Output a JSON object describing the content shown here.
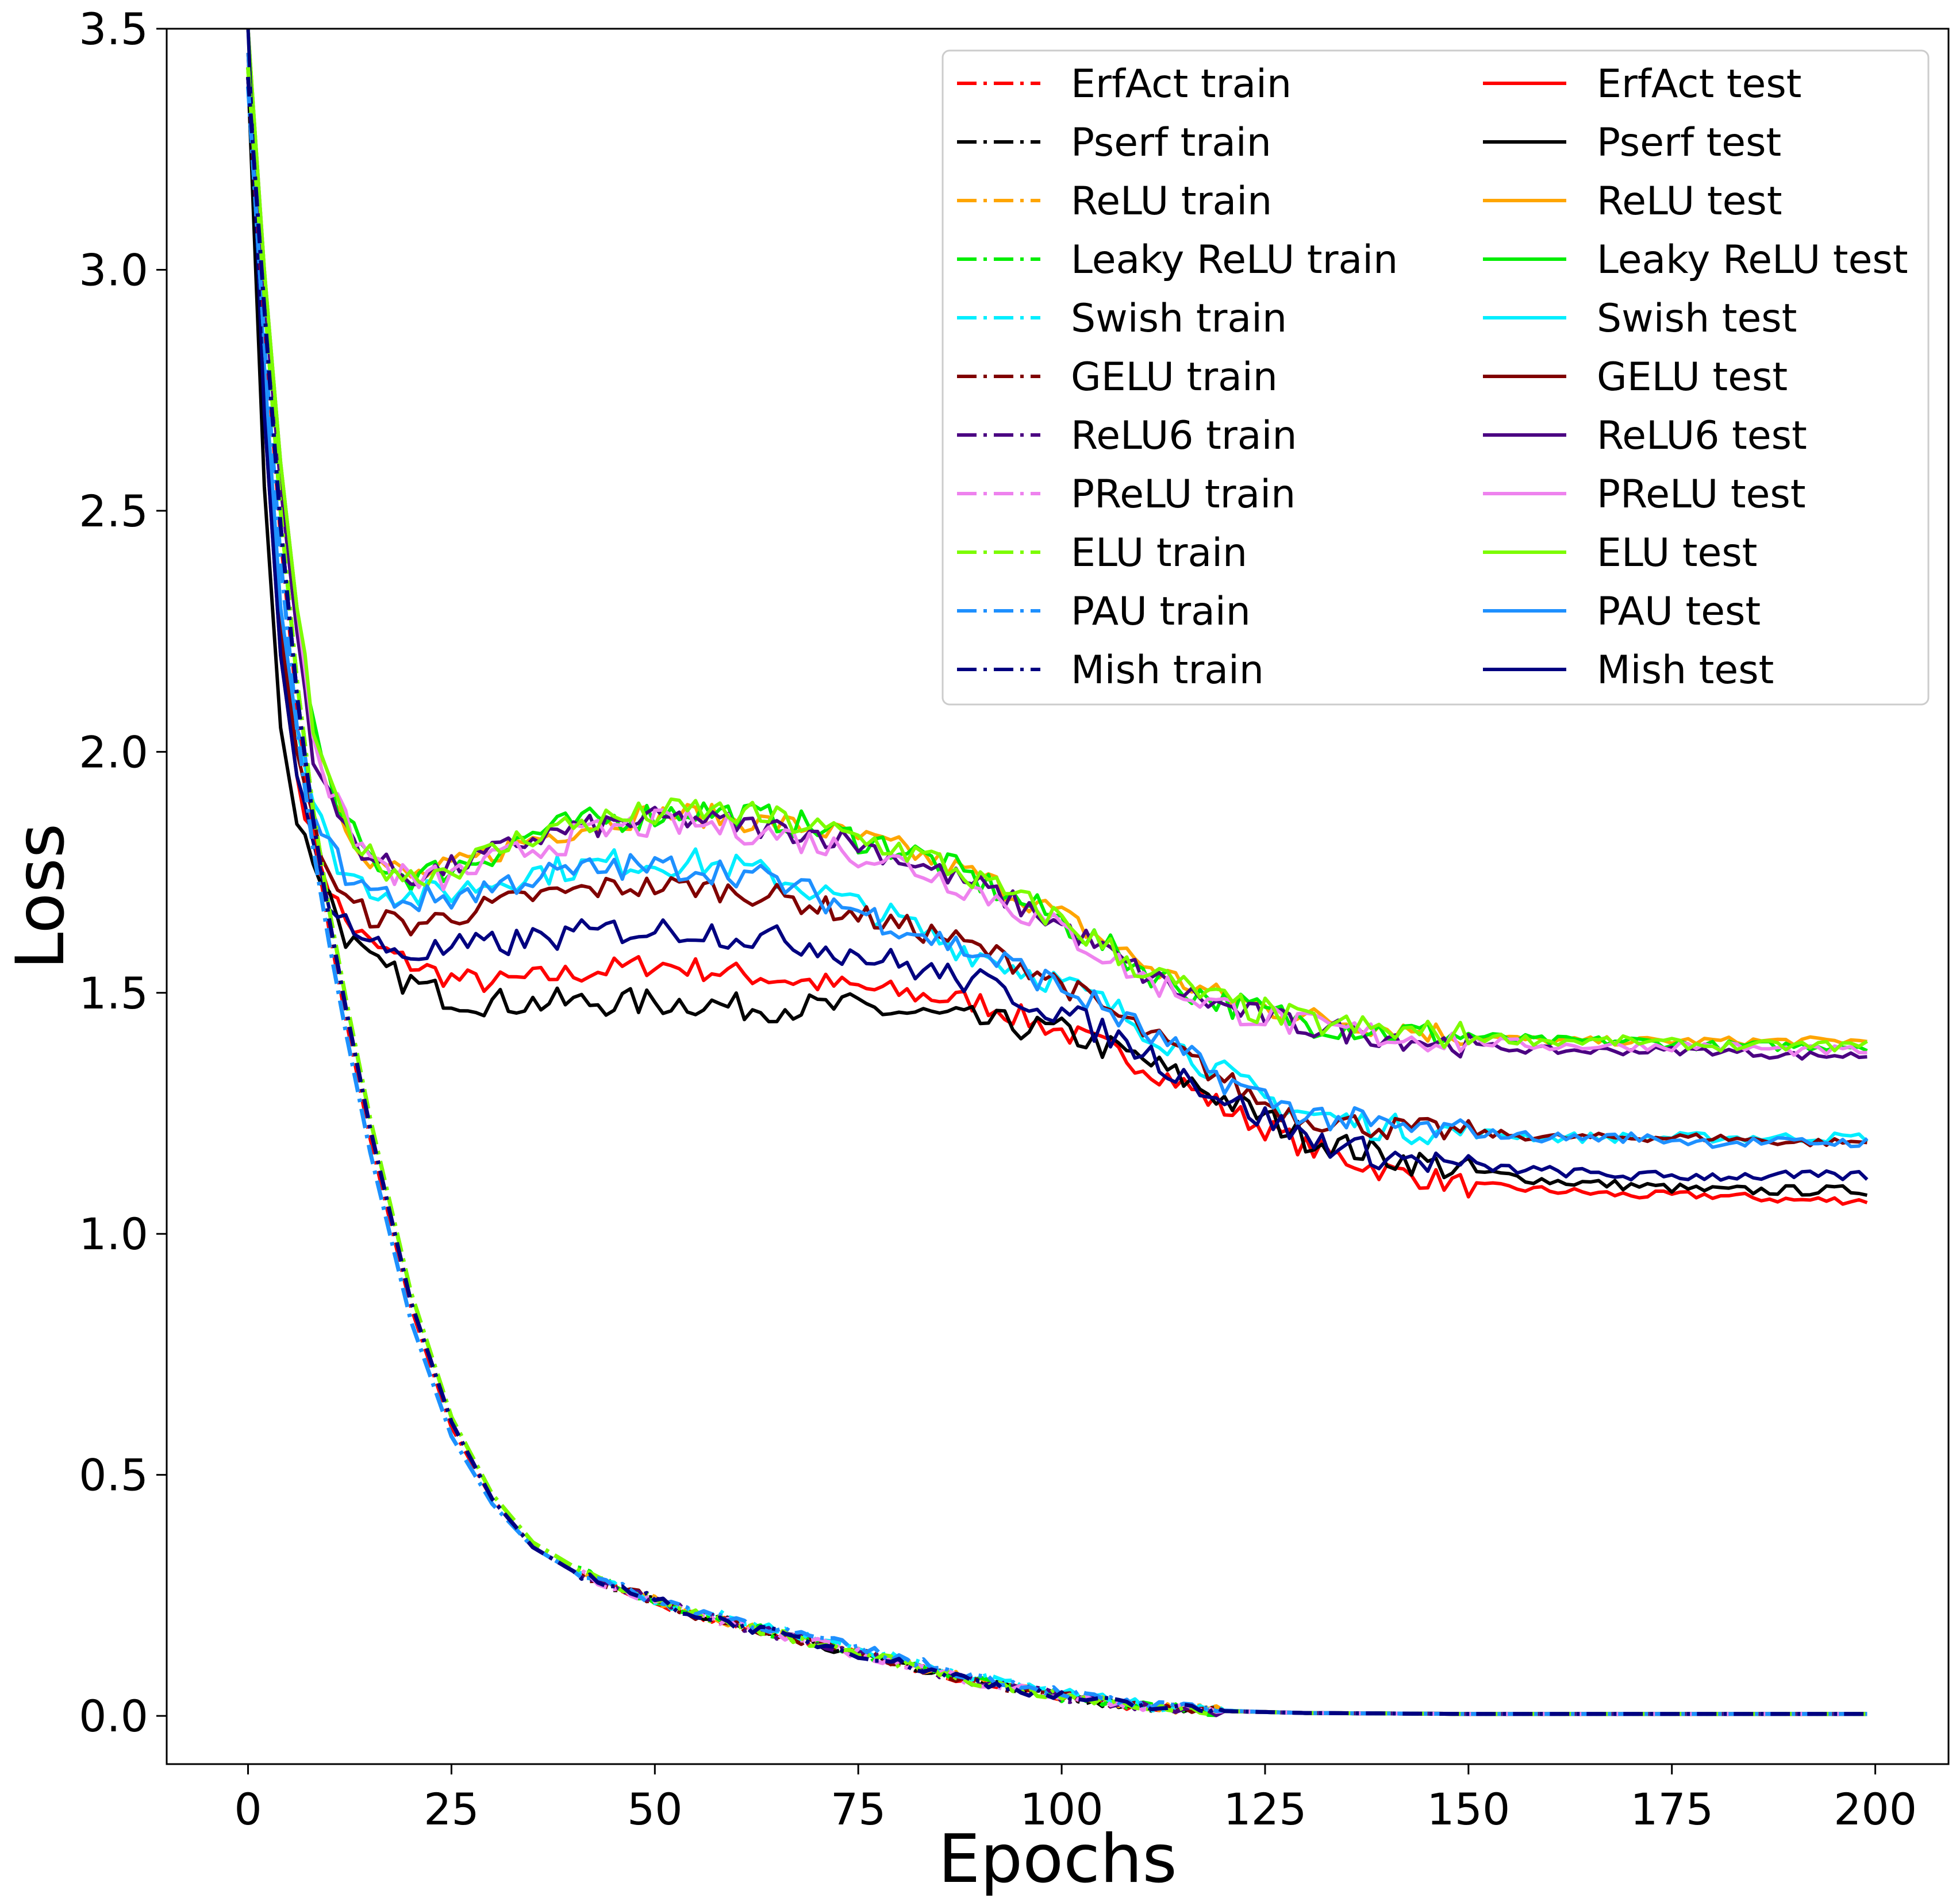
{
  "chart_data": {
    "type": "line",
    "xlabel": "Epochs",
    "ylabel": "Loss",
    "xlim": [
      -10,
      209
    ],
    "ylim": [
      -0.1,
      3.5
    ],
    "xticks": [
      0,
      25,
      50,
      75,
      100,
      125,
      150,
      175,
      200
    ],
    "yticks": [
      0.0,
      0.5,
      1.0,
      1.5,
      2.0,
      2.5,
      3.0,
      3.5
    ],
    "xtick_labels": [
      "0",
      "25",
      "50",
      "75",
      "100",
      "125",
      "150",
      "175",
      "200"
    ],
    "ytick_labels": [
      "0.0",
      "0.5",
      "1.0",
      "1.5",
      "2.0",
      "2.5",
      "3.0",
      "3.5"
    ],
    "grid": false,
    "legend": {
      "position": "top-right",
      "columns": 2
    },
    "series_profiles": {
      "x": [
        0,
        2,
        4,
        6,
        8,
        10,
        12,
        15,
        20,
        25,
        30,
        35,
        40,
        45,
        50,
        55,
        60,
        65,
        70,
        75,
        80,
        85,
        90,
        95,
        100,
        105,
        110,
        115,
        120,
        125,
        130,
        140,
        150,
        160,
        170,
        180,
        190,
        199
      ],
      "train": {
        "epochs_shown": 200,
        "profile": [
          3.4,
          2.9,
          2.45,
          2.1,
          1.84,
          1.63,
          1.45,
          1.2,
          0.85,
          0.6,
          0.45,
          0.35,
          0.3,
          0.27,
          0.24,
          0.21,
          0.19,
          0.17,
          0.15,
          0.13,
          0.11,
          0.09,
          0.07,
          0.055,
          0.04,
          0.03,
          0.02,
          0.015,
          0.01,
          0.008,
          0.006,
          0.005,
          0.004,
          0.004,
          0.004,
          0.004,
          0.004,
          0.004
        ]
      }
    },
    "series": [
      {
        "name": "ErfAct train",
        "color": "#ff0000",
        "dash": "dashdot",
        "group": "train",
        "offset": -0.01,
        "values": [
          3.4,
          2.9,
          2.45,
          2.1,
          1.84,
          1.63,
          1.45,
          1.2,
          0.85,
          0.6,
          0.45,
          0.35,
          0.3,
          0.27,
          0.24,
          0.21,
          0.19,
          0.17,
          0.15,
          0.13,
          0.11,
          0.09,
          0.07,
          0.055,
          0.04,
          0.03,
          0.02,
          0.015,
          0.01,
          0.008,
          0.006,
          0.005,
          0.004,
          0.004,
          0.004,
          0.004,
          0.004,
          0.004
        ]
      },
      {
        "name": "Pserf train",
        "color": "#000000",
        "dash": "dashdot",
        "group": "train",
        "offset": 0.0,
        "values": [
          3.4,
          2.92,
          2.47,
          2.12,
          1.86,
          1.65,
          1.47,
          1.22,
          0.86,
          0.61,
          0.45,
          0.35,
          0.3,
          0.27,
          0.24,
          0.21,
          0.19,
          0.17,
          0.15,
          0.13,
          0.11,
          0.09,
          0.07,
          0.055,
          0.04,
          0.03,
          0.02,
          0.015,
          0.01,
          0.008,
          0.006,
          0.005,
          0.004,
          0.004,
          0.004,
          0.004,
          0.004,
          0.004
        ]
      },
      {
        "name": "ReLU train",
        "color": "#ffa500",
        "dash": "dashdot",
        "group": "train",
        "offset": 0.01,
        "values": [
          3.42,
          2.95,
          2.5,
          2.15,
          1.88,
          1.67,
          1.49,
          1.24,
          0.88,
          0.62,
          0.46,
          0.36,
          0.31,
          0.27,
          0.24,
          0.21,
          0.19,
          0.17,
          0.15,
          0.13,
          0.11,
          0.09,
          0.07,
          0.055,
          0.04,
          0.03,
          0.02,
          0.015,
          0.01,
          0.008,
          0.006,
          0.005,
          0.004,
          0.004,
          0.004,
          0.004,
          0.004,
          0.004
        ]
      },
      {
        "name": "Leaky ReLU train",
        "color": "#00ee00",
        "dash": "dashdot",
        "group": "train",
        "offset": 0.01,
        "values": [
          3.42,
          2.95,
          2.5,
          2.15,
          1.88,
          1.67,
          1.49,
          1.24,
          0.88,
          0.62,
          0.46,
          0.36,
          0.31,
          0.27,
          0.24,
          0.21,
          0.19,
          0.17,
          0.15,
          0.13,
          0.11,
          0.09,
          0.07,
          0.055,
          0.04,
          0.03,
          0.02,
          0.015,
          0.01,
          0.008,
          0.006,
          0.005,
          0.004,
          0.004,
          0.004,
          0.004,
          0.004,
          0.004
        ]
      },
      {
        "name": "Swish train",
        "color": "#00eeff",
        "dash": "dashdot",
        "group": "train",
        "offset": -0.02,
        "values": [
          3.38,
          2.85,
          2.4,
          2.05,
          1.8,
          1.6,
          1.42,
          1.17,
          0.82,
          0.58,
          0.44,
          0.35,
          0.3,
          0.27,
          0.24,
          0.22,
          0.2,
          0.18,
          0.16,
          0.14,
          0.12,
          0.1,
          0.08,
          0.065,
          0.05,
          0.035,
          0.022,
          0.016,
          0.011,
          0.008,
          0.006,
          0.005,
          0.004,
          0.004,
          0.004,
          0.004,
          0.004,
          0.004
        ]
      },
      {
        "name": "GELU train",
        "color": "#800000",
        "dash": "dashdot",
        "group": "train",
        "offset": 0.0,
        "values": [
          3.4,
          2.92,
          2.47,
          2.12,
          1.86,
          1.65,
          1.47,
          1.22,
          0.86,
          0.61,
          0.45,
          0.35,
          0.3,
          0.27,
          0.24,
          0.21,
          0.19,
          0.17,
          0.15,
          0.13,
          0.11,
          0.09,
          0.07,
          0.055,
          0.04,
          0.03,
          0.02,
          0.015,
          0.01,
          0.008,
          0.006,
          0.005,
          0.004,
          0.004,
          0.004,
          0.004,
          0.004,
          0.004
        ]
      },
      {
        "name": "ReLU6 train",
        "color": "#4b0082",
        "dash": "dashdot",
        "group": "train",
        "offset": 0.0,
        "values": [
          3.4,
          2.92,
          2.47,
          2.12,
          1.86,
          1.65,
          1.47,
          1.22,
          0.86,
          0.61,
          0.45,
          0.35,
          0.3,
          0.27,
          0.24,
          0.21,
          0.19,
          0.17,
          0.15,
          0.13,
          0.11,
          0.09,
          0.07,
          0.055,
          0.04,
          0.03,
          0.02,
          0.015,
          0.01,
          0.008,
          0.006,
          0.005,
          0.004,
          0.004,
          0.004,
          0.004,
          0.004,
          0.004
        ]
      },
      {
        "name": "PReLU train",
        "color": "#ee82ee",
        "dash": "dashdot",
        "group": "train",
        "offset": 0.0,
        "values": [
          3.4,
          2.92,
          2.47,
          2.12,
          1.86,
          1.65,
          1.47,
          1.22,
          0.86,
          0.61,
          0.45,
          0.35,
          0.3,
          0.27,
          0.24,
          0.21,
          0.19,
          0.17,
          0.15,
          0.13,
          0.11,
          0.09,
          0.07,
          0.055,
          0.04,
          0.03,
          0.02,
          0.015,
          0.01,
          0.008,
          0.006,
          0.005,
          0.004,
          0.004,
          0.004,
          0.004,
          0.004,
          0.004
        ]
      },
      {
        "name": "ELU train",
        "color": "#7cfc00",
        "dash": "dashdot",
        "group": "train",
        "offset": 0.01,
        "values": [
          3.42,
          2.95,
          2.5,
          2.15,
          1.88,
          1.67,
          1.49,
          1.24,
          0.88,
          0.62,
          0.46,
          0.36,
          0.31,
          0.27,
          0.24,
          0.21,
          0.19,
          0.17,
          0.15,
          0.13,
          0.11,
          0.09,
          0.07,
          0.055,
          0.04,
          0.03,
          0.02,
          0.015,
          0.01,
          0.008,
          0.006,
          0.005,
          0.004,
          0.004,
          0.004,
          0.004,
          0.004,
          0.004
        ]
      },
      {
        "name": "PAU train",
        "color": "#1e90ff",
        "dash": "dashdot",
        "group": "train",
        "offset": -0.02,
        "values": [
          3.38,
          2.85,
          2.4,
          2.05,
          1.8,
          1.6,
          1.42,
          1.17,
          0.82,
          0.58,
          0.44,
          0.35,
          0.3,
          0.27,
          0.24,
          0.22,
          0.2,
          0.18,
          0.16,
          0.14,
          0.12,
          0.1,
          0.08,
          0.065,
          0.05,
          0.035,
          0.022,
          0.016,
          0.011,
          0.008,
          0.006,
          0.005,
          0.004,
          0.004,
          0.004,
          0.004,
          0.004,
          0.004
        ]
      },
      {
        "name": "Mish train",
        "color": "#000080",
        "dash": "dashdot",
        "group": "train",
        "offset": 0.0,
        "values": [
          3.4,
          2.92,
          2.47,
          2.12,
          1.86,
          1.65,
          1.47,
          1.22,
          0.86,
          0.61,
          0.45,
          0.35,
          0.3,
          0.27,
          0.24,
          0.21,
          0.19,
          0.17,
          0.15,
          0.13,
          0.11,
          0.09,
          0.07,
          0.055,
          0.04,
          0.03,
          0.02,
          0.015,
          0.01,
          0.008,
          0.006,
          0.005,
          0.004,
          0.004,
          0.004,
          0.004,
          0.004,
          0.004
        ]
      },
      {
        "name": "ErfAct test",
        "color": "#ff0000",
        "dash": "solid",
        "group": "test",
        "noise": 0.025,
        "values": [
          3.45,
          2.7,
          2.2,
          1.95,
          1.82,
          1.72,
          1.65,
          1.6,
          1.56,
          1.53,
          1.52,
          1.53,
          1.54,
          1.55,
          1.56,
          1.55,
          1.54,
          1.53,
          1.52,
          1.51,
          1.5,
          1.49,
          1.48,
          1.45,
          1.42,
          1.39,
          1.35,
          1.31,
          1.26,
          1.22,
          1.18,
          1.13,
          1.1,
          1.09,
          1.08,
          1.08,
          1.07,
          1.07
        ]
      },
      {
        "name": "Pserf test",
        "color": "#000000",
        "dash": "solid",
        "group": "test",
        "noise": 0.03,
        "values": [
          3.4,
          2.55,
          2.05,
          1.85,
          1.78,
          1.7,
          1.62,
          1.56,
          1.52,
          1.49,
          1.48,
          1.48,
          1.48,
          1.48,
          1.48,
          1.48,
          1.47,
          1.47,
          1.47,
          1.47,
          1.46,
          1.45,
          1.44,
          1.43,
          1.42,
          1.39,
          1.36,
          1.32,
          1.28,
          1.24,
          1.2,
          1.16,
          1.13,
          1.11,
          1.1,
          1.09,
          1.09,
          1.09
        ]
      },
      {
        "name": "ReLU test",
        "color": "#ffa500",
        "dash": "solid",
        "group": "test",
        "noise": 0.025,
        "values": [
          3.5,
          3.0,
          2.6,
          2.3,
          2.05,
          1.92,
          1.85,
          1.78,
          1.74,
          1.76,
          1.79,
          1.82,
          1.84,
          1.86,
          1.87,
          1.87,
          1.86,
          1.85,
          1.84,
          1.82,
          1.8,
          1.77,
          1.74,
          1.7,
          1.66,
          1.61,
          1.56,
          1.52,
          1.49,
          1.47,
          1.45,
          1.43,
          1.41,
          1.4,
          1.4,
          1.4,
          1.4,
          1.4
        ]
      },
      {
        "name": "Leaky ReLU test",
        "color": "#00ee00",
        "dash": "solid",
        "group": "test",
        "noise": 0.03,
        "values": [
          3.5,
          3.0,
          2.6,
          2.3,
          2.05,
          1.92,
          1.85,
          1.78,
          1.74,
          1.76,
          1.79,
          1.83,
          1.85,
          1.86,
          1.87,
          1.88,
          1.87,
          1.86,
          1.84,
          1.82,
          1.8,
          1.77,
          1.73,
          1.69,
          1.65,
          1.6,
          1.55,
          1.51,
          1.48,
          1.46,
          1.44,
          1.42,
          1.41,
          1.4,
          1.4,
          1.39,
          1.39,
          1.39
        ]
      },
      {
        "name": "Swish test",
        "color": "#00eeff",
        "dash": "solid",
        "group": "test",
        "noise": 0.03,
        "values": [
          3.5,
          2.8,
          2.3,
          2.05,
          1.9,
          1.8,
          1.75,
          1.72,
          1.7,
          1.71,
          1.73,
          1.75,
          1.76,
          1.77,
          1.77,
          1.77,
          1.76,
          1.74,
          1.71,
          1.68,
          1.65,
          1.61,
          1.58,
          1.55,
          1.52,
          1.48,
          1.43,
          1.38,
          1.33,
          1.28,
          1.25,
          1.22,
          1.21,
          1.2,
          1.2,
          1.2,
          1.2,
          1.2
        ]
      },
      {
        "name": "GELU test",
        "color": "#800000",
        "dash": "solid",
        "group": "test",
        "noise": 0.025,
        "values": [
          3.45,
          2.75,
          2.25,
          2.0,
          1.85,
          1.75,
          1.69,
          1.66,
          1.64,
          1.66,
          1.68,
          1.7,
          1.71,
          1.72,
          1.72,
          1.72,
          1.71,
          1.7,
          1.68,
          1.66,
          1.64,
          1.62,
          1.59,
          1.56,
          1.52,
          1.47,
          1.42,
          1.37,
          1.32,
          1.27,
          1.24,
          1.22,
          1.21,
          1.2,
          1.2,
          1.2,
          1.19,
          1.19
        ]
      },
      {
        "name": "ReLU6 test",
        "color": "#4b0082",
        "dash": "solid",
        "group": "test",
        "noise": 0.025,
        "values": [
          3.5,
          2.95,
          2.55,
          2.25,
          2.0,
          1.9,
          1.84,
          1.78,
          1.74,
          1.76,
          1.79,
          1.82,
          1.84,
          1.85,
          1.86,
          1.86,
          1.85,
          1.84,
          1.83,
          1.81,
          1.78,
          1.75,
          1.72,
          1.68,
          1.64,
          1.59,
          1.54,
          1.5,
          1.47,
          1.45,
          1.43,
          1.41,
          1.39,
          1.38,
          1.38,
          1.38,
          1.37,
          1.37
        ]
      },
      {
        "name": "PReLU test",
        "color": "#ee82ee",
        "dash": "solid",
        "group": "test",
        "noise": 0.03,
        "values": [
          3.5,
          3.0,
          2.6,
          2.3,
          2.05,
          1.92,
          1.85,
          1.78,
          1.73,
          1.74,
          1.77,
          1.8,
          1.82,
          1.84,
          1.85,
          1.85,
          1.84,
          1.83,
          1.81,
          1.79,
          1.77,
          1.74,
          1.71,
          1.67,
          1.63,
          1.58,
          1.53,
          1.5,
          1.47,
          1.45,
          1.43,
          1.41,
          1.4,
          1.39,
          1.39,
          1.39,
          1.38,
          1.38
        ]
      },
      {
        "name": "ELU test",
        "color": "#7cfc00",
        "dash": "solid",
        "group": "test",
        "noise": 0.03,
        "values": [
          3.5,
          3.0,
          2.6,
          2.3,
          2.05,
          1.92,
          1.85,
          1.78,
          1.74,
          1.76,
          1.79,
          1.83,
          1.85,
          1.86,
          1.87,
          1.88,
          1.87,
          1.86,
          1.84,
          1.82,
          1.8,
          1.77,
          1.73,
          1.69,
          1.65,
          1.6,
          1.55,
          1.51,
          1.48,
          1.46,
          1.44,
          1.42,
          1.41,
          1.4,
          1.4,
          1.39,
          1.39,
          1.39
        ]
      },
      {
        "name": "PAU test",
        "color": "#1e90ff",
        "dash": "solid",
        "group": "test",
        "noise": 0.03,
        "values": [
          3.45,
          2.8,
          2.3,
          2.05,
          1.9,
          1.8,
          1.75,
          1.71,
          1.69,
          1.7,
          1.72,
          1.74,
          1.75,
          1.76,
          1.76,
          1.76,
          1.75,
          1.73,
          1.7,
          1.67,
          1.64,
          1.61,
          1.58,
          1.55,
          1.51,
          1.47,
          1.42,
          1.37,
          1.32,
          1.28,
          1.25,
          1.22,
          1.21,
          1.2,
          1.2,
          1.19,
          1.19,
          1.19
        ]
      },
      {
        "name": "Mish test",
        "color": "#000080",
        "dash": "solid",
        "group": "test",
        "noise": 0.03,
        "values": [
          3.5,
          2.7,
          2.2,
          1.95,
          1.8,
          1.7,
          1.65,
          1.6,
          1.58,
          1.59,
          1.6,
          1.61,
          1.62,
          1.63,
          1.63,
          1.63,
          1.62,
          1.61,
          1.6,
          1.58,
          1.56,
          1.54,
          1.52,
          1.49,
          1.46,
          1.42,
          1.38,
          1.33,
          1.28,
          1.24,
          1.2,
          1.16,
          1.14,
          1.13,
          1.12,
          1.12,
          1.12,
          1.12
        ]
      }
    ]
  }
}
